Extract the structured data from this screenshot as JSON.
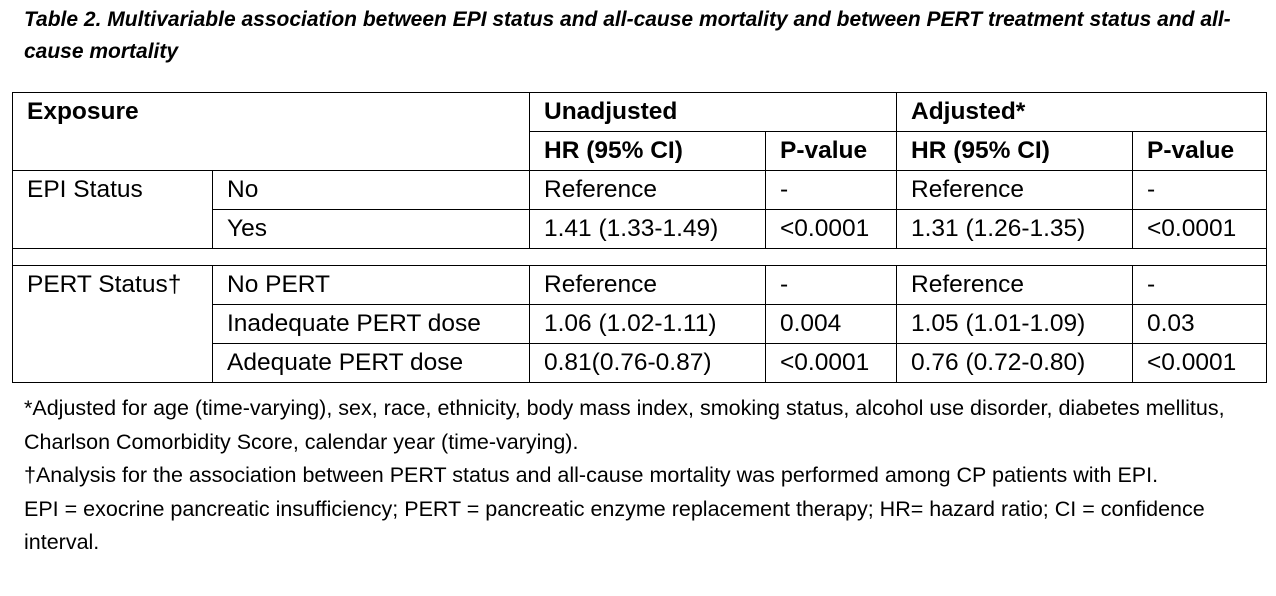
{
  "caption": "Table 2. Multivariable association between EPI status and all-cause mortality and between PERT treatment status and all-cause mortality",
  "header": {
    "exposure": "Exposure",
    "unadjusted": "Unadjusted",
    "adjusted": "Adjusted*",
    "hr": "HR (95% CI)",
    "pvalue": "P-value"
  },
  "epi": {
    "label": "EPI Status",
    "rows": [
      {
        "level": "No",
        "u_hr": "Reference",
        "u_p": "-",
        "a_hr": "Reference",
        "a_p": "-"
      },
      {
        "level": "Yes",
        "u_hr": "1.41 (1.33-1.49)",
        "u_p": "<0.0001",
        "a_hr": "1.31 (1.26-1.35)",
        "a_p": "<0.0001"
      }
    ]
  },
  "pert": {
    "label": "PERT Status†",
    "rows": [
      {
        "level": "No PERT",
        "u_hr": "Reference",
        "u_p": "-",
        "a_hr": "Reference",
        "a_p": "-"
      },
      {
        "level": "Inadequate PERT dose",
        "u_hr": "1.06 (1.02-1.11)",
        "u_p": "0.004",
        "a_hr": "1.05 (1.01-1.09)",
        "a_p": "0.03"
      },
      {
        "level": "Adequate PERT dose",
        "u_hr": "0.81(0.76-0.87)",
        "u_p": "<0.0001",
        "a_hr": "0.76 (0.72-0.80)",
        "a_p": "<0.0001"
      }
    ]
  },
  "footnotes": [
    "*Adjusted for age (time-varying), sex, race, ethnicity, body mass index, smoking status, alcohol use disorder, diabetes mellitus, Charlson Comorbidity Score, calendar year (time-varying).",
    "†Analysis for the association between PERT status and all-cause mortality was performed among CP patients with EPI.",
    "EPI = exocrine pancreatic insufficiency; PERT = pancreatic enzyme replacement therapy; HR= hazard ratio; CI = confidence interval."
  ]
}
